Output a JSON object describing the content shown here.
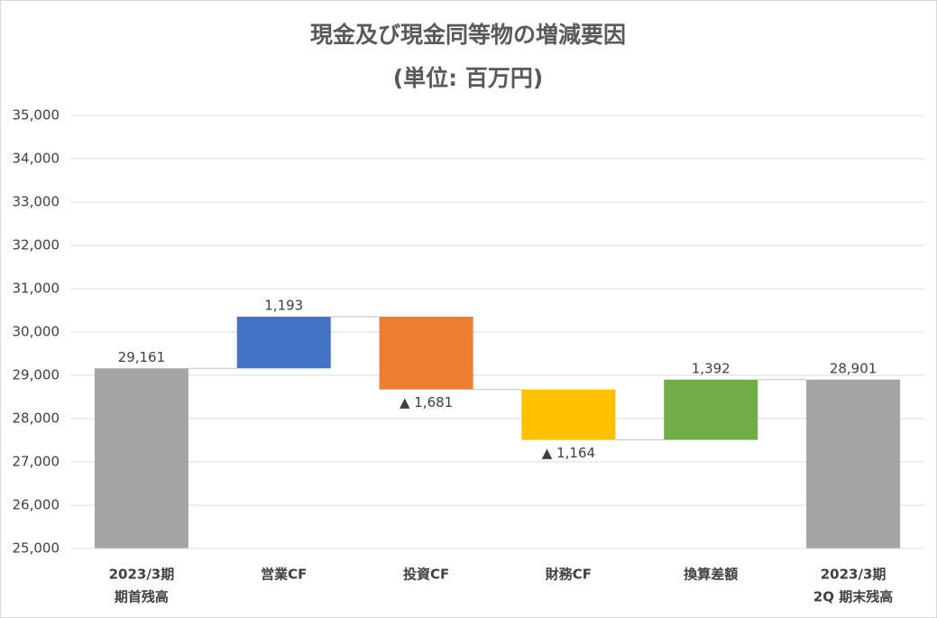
{
  "chart_data": {
    "type": "waterfall",
    "title": "現金及び現金同等物の増減要因",
    "subtitle": "(単位: 百万円)",
    "categories": [
      [
        "2023/3期",
        "期首残高"
      ],
      [
        "営業CF"
      ],
      [
        "投資CF"
      ],
      [
        "財務CF"
      ],
      [
        "換算差額"
      ],
      [
        "2023/3期",
        "2Q 期末残高"
      ]
    ],
    "values": [
      29161,
      1193,
      -1681,
      -1164,
      1392,
      28901
    ],
    "value_labels": [
      "29,161",
      "1,193",
      "▲ 1,681",
      "▲ 1,164",
      "1,392",
      "28,901"
    ],
    "is_total": [
      true,
      false,
      false,
      false,
      false,
      true
    ],
    "colors": [
      "#a5a5a5",
      "#4472c4",
      "#ed7d31",
      "#ffc000",
      "#70ad47",
      "#a5a5a5"
    ],
    "ylim": [
      25000,
      35000
    ],
    "yticks": [
      {
        "value": 25000,
        "label": "25,000"
      },
      {
        "value": 26000,
        "label": "26,000"
      },
      {
        "value": 27000,
        "label": "27,000"
      },
      {
        "value": 28000,
        "label": "28,000"
      },
      {
        "value": 29000,
        "label": "29,000"
      },
      {
        "value": 30000,
        "label": "30,000"
      },
      {
        "value": 31000,
        "label": "31,000"
      },
      {
        "value": 32000,
        "label": "32,000"
      },
      {
        "value": 33000,
        "label": "33,000"
      },
      {
        "value": 34000,
        "label": "34,000"
      },
      {
        "value": 35000,
        "label": "35,000"
      }
    ],
    "grid": true
  }
}
